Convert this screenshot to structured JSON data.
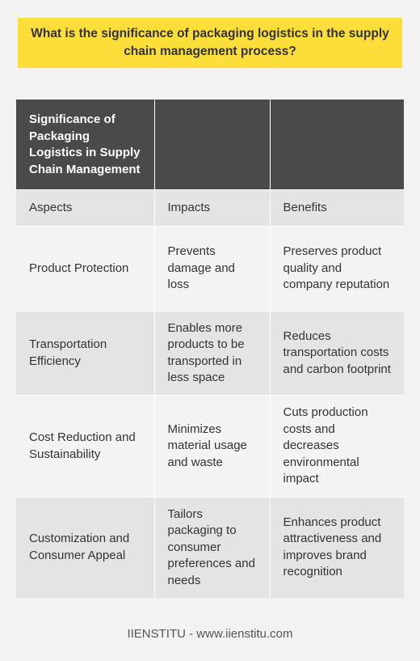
{
  "title": "What is the significance of packaging logistics in the supply chain management process?",
  "table": {
    "header": [
      "Significance of Packaging Logistics in Supply Chain Management",
      "",
      ""
    ],
    "columns": [
      "Aspects",
      "Impacts",
      "Benefits"
    ],
    "rows": [
      [
        "Product Protection",
        "Prevents damage and loss",
        "Preserves product quality and company reputation"
      ],
      [
        "Transportation Efficiency",
        "Enables more products to be transported in less space",
        "Reduces transportation costs and carbon footprint"
      ],
      [
        "Cost Reduction and Sustainability",
        "Minimizes material usage and waste",
        "Cuts production costs and decreases environmental impact"
      ],
      [
        "Customization and Consumer Appeal",
        "Tailors packaging to consumer preferences and needs",
        "Enhances product attractiveness and improves brand recognition"
      ]
    ]
  },
  "footer": "IIENSTITU - www.iienstitu.com",
  "colors": {
    "title_background": "#fbde3a",
    "header_background": "#4a4a4a",
    "row_light": "#f3f3f3",
    "row_dark": "#e4e4e4"
  }
}
